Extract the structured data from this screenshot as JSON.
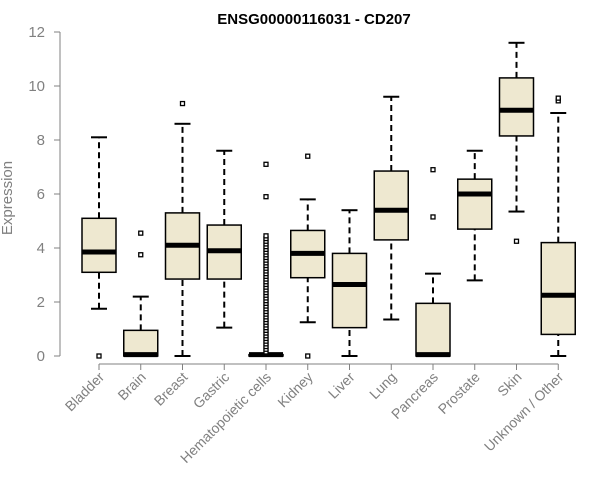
{
  "chart_data": {
    "type": "boxplot",
    "title": "ENSG00000116031 - CD207",
    "ylabel": "Expression",
    "xlabel": "",
    "ylim": [
      0,
      12
    ],
    "yticks": [
      0,
      2,
      4,
      6,
      8,
      10,
      12
    ],
    "grid": false,
    "box_fill": "#EEE8D0",
    "categories": [
      "Bladder",
      "Brain",
      "Breast",
      "Gastric",
      "Hematopoietic cells",
      "Kidney",
      "Liver",
      "Lung",
      "Pancreas",
      "Prostate",
      "Skin",
      "Unknown / Other"
    ],
    "boxes": [
      {
        "min": 1.75,
        "q1": 3.1,
        "median": 3.85,
        "q3": 5.1,
        "max": 8.1,
        "outliers": [
          0.0
        ]
      },
      {
        "min": 0.0,
        "q1": 0.0,
        "median": 0.05,
        "q3": 0.95,
        "max": 2.2,
        "outliers": [
          3.75,
          4.55
        ]
      },
      {
        "min": 0.0,
        "q1": 2.85,
        "median": 4.1,
        "q3": 5.3,
        "max": 8.6,
        "outliers": [
          9.35
        ]
      },
      {
        "min": 1.05,
        "q1": 2.85,
        "median": 3.9,
        "q3": 4.85,
        "max": 7.6,
        "outliers": []
      },
      {
        "min": 0.0,
        "q1": 0.0,
        "median": 0.05,
        "q3": 0.05,
        "max": 0.05,
        "outliers": [
          0.15,
          0.25,
          0.35,
          0.45,
          0.55,
          0.65,
          0.75,
          0.85,
          0.95,
          1.05,
          1.15,
          1.25,
          1.35,
          1.45,
          1.55,
          1.65,
          1.75,
          1.85,
          1.95,
          2.05,
          2.15,
          2.25,
          2.35,
          2.45,
          2.55,
          2.65,
          2.75,
          2.85,
          2.95,
          3.05,
          3.15,
          3.25,
          3.35,
          3.45,
          3.55,
          3.65,
          3.75,
          3.85,
          3.95,
          4.05,
          4.15,
          4.25,
          4.35,
          4.45,
          5.9,
          7.1
        ]
      },
      {
        "min": 1.25,
        "q1": 2.9,
        "median": 3.8,
        "q3": 4.65,
        "max": 5.8,
        "outliers": [
          0.0,
          7.4
        ]
      },
      {
        "min": 0.0,
        "q1": 1.05,
        "median": 2.65,
        "q3": 3.8,
        "max": 5.4,
        "outliers": []
      },
      {
        "min": 1.35,
        "q1": 4.3,
        "median": 5.4,
        "q3": 6.85,
        "max": 9.6,
        "outliers": []
      },
      {
        "min": 0.0,
        "q1": 0.0,
        "median": 0.05,
        "q3": 1.95,
        "max": 3.05,
        "outliers": [
          5.15,
          6.9
        ]
      },
      {
        "min": 2.8,
        "q1": 4.7,
        "median": 6.0,
        "q3": 6.55,
        "max": 7.6,
        "outliers": []
      },
      {
        "min": 5.35,
        "q1": 8.15,
        "median": 9.1,
        "q3": 10.3,
        "max": 11.6,
        "outliers": [
          4.25
        ]
      },
      {
        "min": 0.0,
        "q1": 0.8,
        "median": 2.25,
        "q3": 4.2,
        "max": 9.0,
        "outliers": [
          9.45,
          9.55
        ]
      }
    ]
  }
}
